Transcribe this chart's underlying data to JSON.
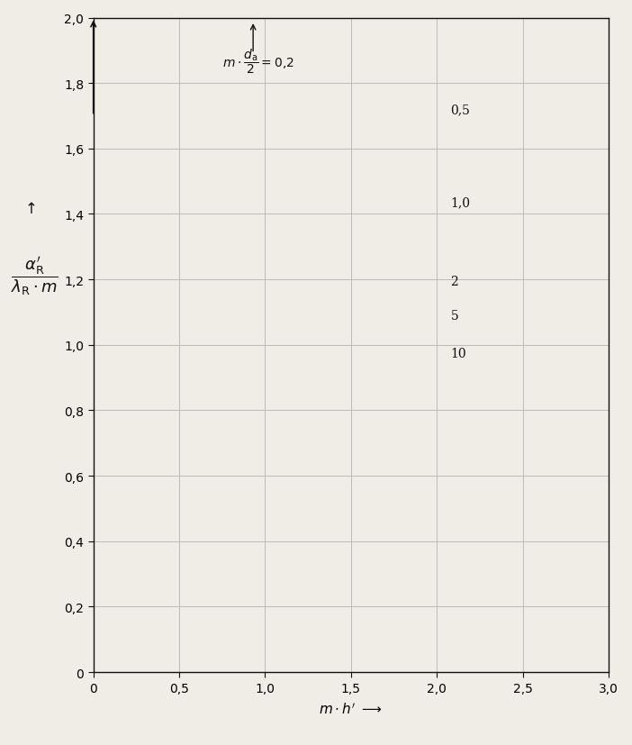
{
  "xlim": [
    0,
    3.0
  ],
  "ylim": [
    0,
    2.0
  ],
  "xticks": [
    0,
    0.5,
    1.0,
    1.5,
    2.0,
    2.5,
    3.0
  ],
  "yticks": [
    0,
    0.2,
    0.4,
    0.6,
    0.8,
    1.0,
    1.2,
    1.4,
    1.6,
    1.8,
    2.0
  ],
  "xtick_labels": [
    "0",
    "0,5",
    "1,0",
    "1,5",
    "2,0",
    "2,5",
    "3,0"
  ],
  "ytick_labels": [
    "0",
    "0,2",
    "0,4",
    "0,6",
    "0,8",
    "1,0",
    "1,2",
    "1,4",
    "1,6",
    "1,8",
    "2,0"
  ],
  "curve_params": [
    0.2,
    0.5,
    1.0,
    2.0,
    5.0,
    10.0
  ],
  "curve_labels": [
    "0,2",
    "0,5",
    "1,0",
    "2",
    "5",
    "10"
  ],
  "background_color": "#f0ece6",
  "line_color": "#111111",
  "grid_color": "#bbbbbb",
  "label_pos": {
    "0.2": [
      0.88,
      1.97
    ],
    "0.5": [
      2.08,
      1.72
    ],
    "1.0": [
      2.08,
      1.435
    ],
    "2.0": [
      2.08,
      1.195
    ],
    "5.0": [
      2.08,
      1.09
    ],
    "10.0": [
      2.08,
      0.975
    ]
  }
}
